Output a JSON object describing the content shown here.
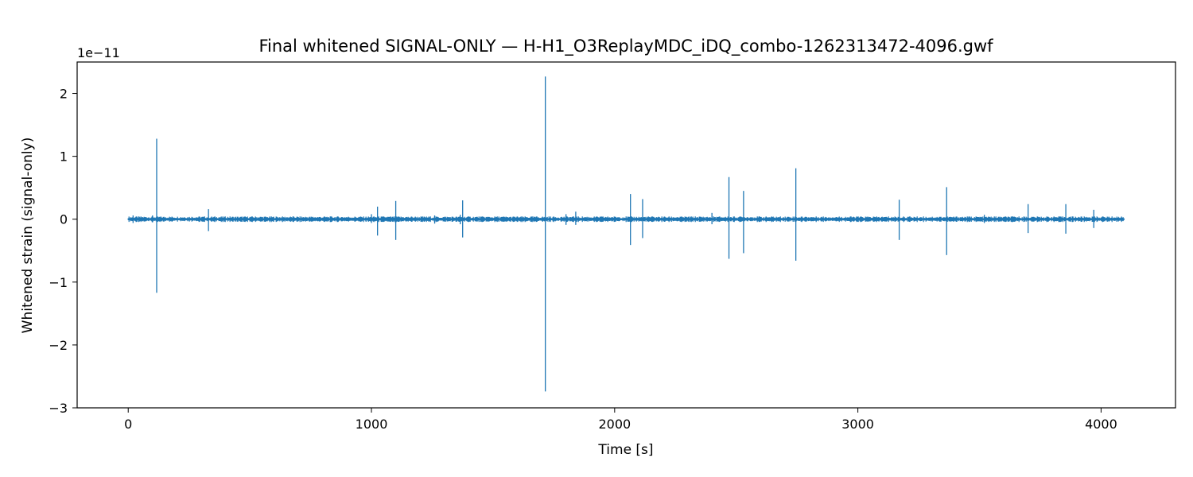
{
  "chart_data": {
    "type": "line",
    "title": "Final whitened SIGNAL-ONLY — H-H1_O3ReplayMDC_iDQ_combo-1262313472-4096.gwf",
    "xlabel": "Time [s]",
    "ylabel": "Whitened strain (signal-only)",
    "y_offset_text": "1e−11",
    "y_scale": 1e-11,
    "xlim": [
      -210,
      4306
    ],
    "ylim": [
      -3,
      2.5
    ],
    "x_ticks": [
      0,
      1000,
      2000,
      3000,
      4000
    ],
    "x_tick_labels": [
      "0",
      "1000",
      "2000",
      "3000",
      "4000"
    ],
    "y_ticks": [
      -3,
      -2,
      -1,
      0,
      1,
      2
    ],
    "y_tick_labels": [
      "−3",
      "−2",
      "−1",
      "0",
      "1",
      "2"
    ],
    "grid": false,
    "legend": "none",
    "series": [
      {
        "color": "#1f77b4",
        "x_range": [
          0,
          4096
        ],
        "baseline_amplitude": 0.03,
        "bursts": [
          {
            "x": 20,
            "y": [
              -0.06,
              0.06
            ]
          },
          {
            "x": 100,
            "y": [
              -0.05,
              0.06
            ]
          },
          {
            "x": 117,
            "y": [
              -1.17,
              1.28
            ]
          },
          {
            "x": 330,
            "y": [
              -0.19,
              0.16
            ]
          },
          {
            "x": 1000,
            "y": [
              -0.06,
              0.08
            ]
          },
          {
            "x": 1025,
            "y": [
              -0.26,
              0.2
            ]
          },
          {
            "x": 1100,
            "y": [
              -0.33,
              0.29
            ]
          },
          {
            "x": 1260,
            "y": [
              -0.07,
              0.06
            ]
          },
          {
            "x": 1365,
            "y": [
              -0.08,
              0.07
            ]
          },
          {
            "x": 1375,
            "y": [
              -0.29,
              0.3
            ]
          },
          {
            "x": 1715,
            "y": [
              -2.74,
              2.27
            ]
          },
          {
            "x": 1800,
            "y": [
              -0.09,
              0.08
            ]
          },
          {
            "x": 1840,
            "y": [
              -0.09,
              0.12
            ]
          },
          {
            "x": 2065,
            "y": [
              -0.41,
              0.4
            ]
          },
          {
            "x": 2115,
            "y": [
              -0.3,
              0.32
            ]
          },
          {
            "x": 2400,
            "y": [
              -0.08,
              0.1
            ]
          },
          {
            "x": 2470,
            "y": [
              -0.63,
              0.67
            ]
          },
          {
            "x": 2530,
            "y": [
              -0.54,
              0.45
            ]
          },
          {
            "x": 2745,
            "y": [
              -0.66,
              0.81
            ]
          },
          {
            "x": 3170,
            "y": [
              -0.33,
              0.31
            ]
          },
          {
            "x": 3365,
            "y": [
              -0.57,
              0.51
            ]
          },
          {
            "x": 3520,
            "y": [
              -0.06,
              0.07
            ]
          },
          {
            "x": 3700,
            "y": [
              -0.22,
              0.24
            ]
          },
          {
            "x": 3855,
            "y": [
              -0.23,
              0.24
            ]
          },
          {
            "x": 3970,
            "y": [
              -0.14,
              0.15
            ]
          }
        ]
      }
    ]
  }
}
